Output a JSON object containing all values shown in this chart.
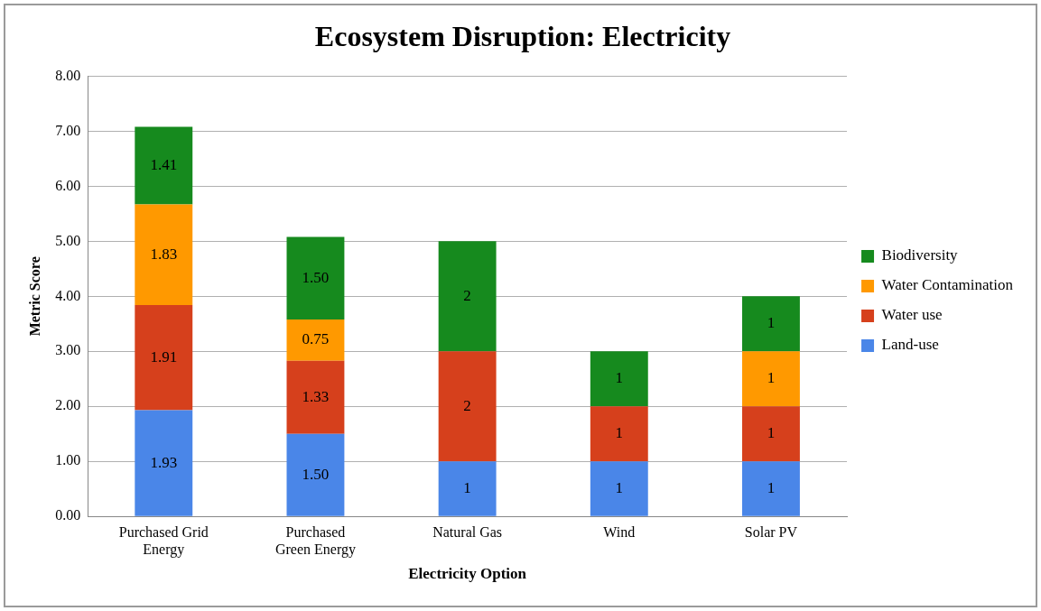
{
  "chart_data": {
    "type": "bar",
    "stacked": true,
    "title": "Ecosystem Disruption: Electricity",
    "xlabel": "Electricity Option",
    "ylabel": "Metric Score",
    "categories": [
      "Purchased Grid Energy",
      "Purchased Green Energy",
      "Natural Gas",
      "Wind",
      "Solar PV"
    ],
    "series": [
      {
        "name": "Land-use",
        "color": "#4a86e8",
        "values": [
          1.93,
          1.5,
          1,
          1,
          1
        ],
        "value_labels": [
          "1.93",
          "1.50",
          "1",
          "1",
          "1"
        ]
      },
      {
        "name": "Water use",
        "color": "#d6401c",
        "values": [
          1.91,
          1.33,
          2,
          1,
          1
        ],
        "value_labels": [
          "1.91",
          "1.33",
          "2",
          "1",
          "1"
        ]
      },
      {
        "name": "Water Contamination",
        "color": "#ff9900",
        "values": [
          1.83,
          0.75,
          null,
          null,
          1
        ],
        "value_labels": [
          "1.83",
          "0.75",
          null,
          null,
          "1"
        ]
      },
      {
        "name": "Biodiversity",
        "color": "#168a1e",
        "values": [
          1.41,
          1.5,
          2,
          1,
          1
        ],
        "value_labels": [
          "1.41",
          "1.50",
          "2",
          "1",
          "1"
        ]
      }
    ],
    "ylim": [
      0,
      8
    ],
    "yticks": [
      {
        "value": 0,
        "label": "0.00"
      },
      {
        "value": 1,
        "label": "1.00"
      },
      {
        "value": 2,
        "label": "2.00"
      },
      {
        "value": 3,
        "label": "3.00"
      },
      {
        "value": 4,
        "label": "4.00"
      },
      {
        "value": 5,
        "label": "5.00"
      },
      {
        "value": 6,
        "label": "6.00"
      },
      {
        "value": 7,
        "label": "7.00"
      },
      {
        "value": 8,
        "label": "8.00"
      }
    ],
    "grid": "y",
    "legend": "right"
  }
}
